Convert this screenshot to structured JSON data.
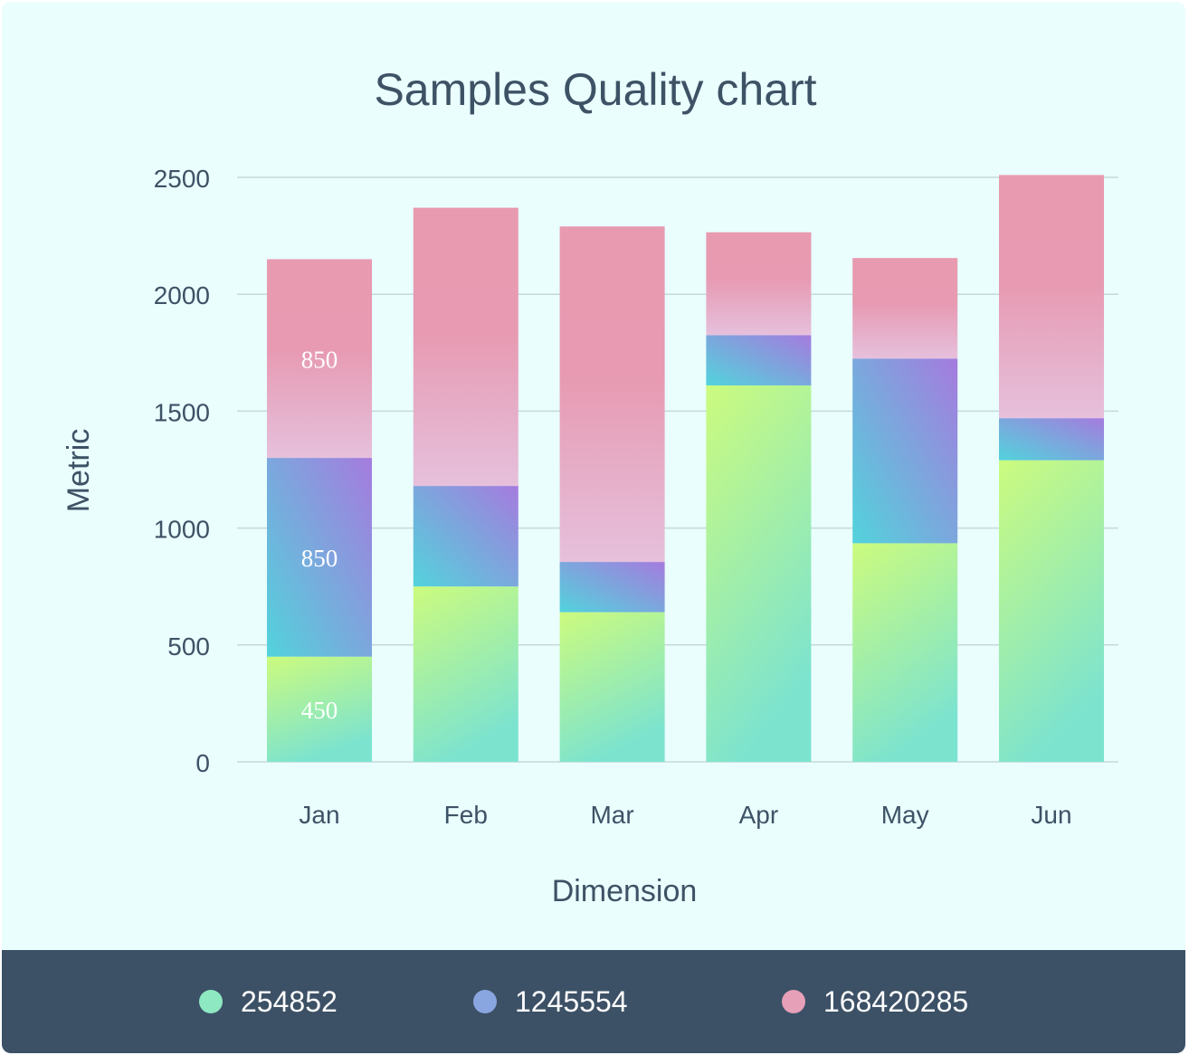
{
  "chart_data": {
    "type": "bar",
    "stacked": true,
    "title": "Samples Quality chart",
    "xlabel": "Dimension",
    "ylabel": "Metric",
    "categories": [
      "Jan",
      "Feb",
      "Mar",
      "Apr",
      "May",
      "Jun"
    ],
    "yticks": [
      "0",
      "500",
      "1000",
      "1500",
      "2000",
      "2500"
    ],
    "ylim": [
      0,
      2500
    ],
    "grid": true,
    "legend_position": "bottom",
    "series": [
      {
        "name": "254852",
        "values": [
          450,
          750,
          640,
          1610,
          935,
          1290
        ],
        "color": "#8ee8c2",
        "data_labels": [
          "450",
          "",
          "",
          "",
          "",
          ""
        ]
      },
      {
        "name": "1245554",
        "values": [
          850,
          430,
          215,
          215,
          790,
          180
        ],
        "color": "#8aa6e0",
        "data_labels": [
          "850",
          "",
          "",
          "",
          "",
          ""
        ]
      },
      {
        "name": "168420285",
        "values": [
          850,
          1190,
          1435,
          440,
          430,
          1040
        ],
        "color": "#e6a0b8",
        "data_labels": [
          "850",
          "",
          "",
          "",
          "",
          ""
        ]
      }
    ]
  }
}
